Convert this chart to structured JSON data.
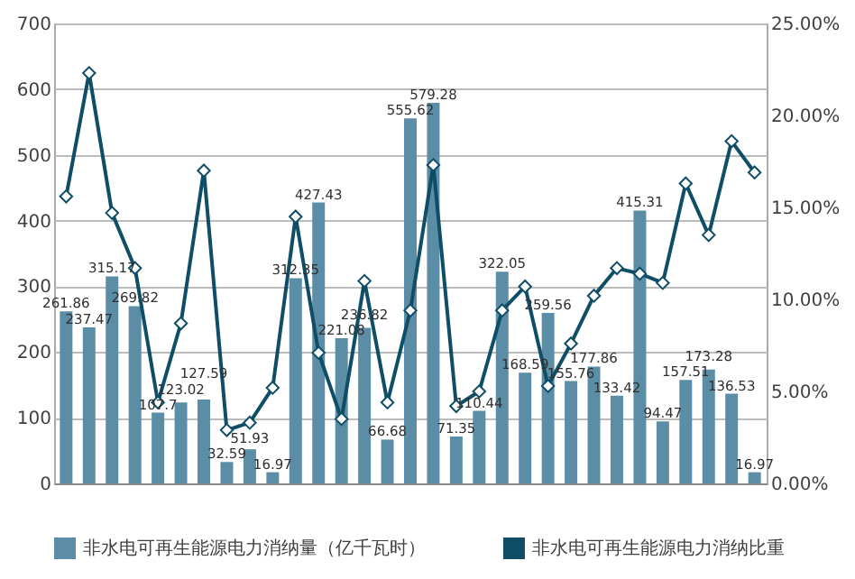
{
  "chart_data": {
    "type": "bar",
    "categories": [
      null,
      null,
      null,
      null,
      null,
      null,
      null,
      null,
      null,
      null,
      null,
      null,
      null,
      null,
      null,
      null,
      null,
      null,
      null,
      null,
      null,
      null,
      null,
      null,
      null,
      null,
      null,
      null,
      null,
      null,
      null
    ],
    "series": [
      {
        "name": "非水电可再生能源电力消纳量（亿千瓦时）",
        "color": "#5b8ea6",
        "values": [
          261.86,
          237.47,
          315.17,
          269.82,
          107.7,
          123.02,
          127.59,
          32.59,
          51.93,
          16.97,
          312.35,
          427.43,
          221.08,
          236.82,
          66.68,
          555.62,
          579.28,
          71.35,
          110.44,
          322.05,
          168.59,
          259.56,
          155.76,
          177.86,
          133.42,
          415.31,
          94.47,
          157.51,
          173.28,
          136.53,
          16.97
        ],
        "value_labels": [
          "261.86",
          "237.47",
          "315.17",
          "269.82",
          "107.7",
          "123.02",
          "127.59",
          "32.59",
          "51.93",
          "16.97",
          "312.35",
          "427.43",
          "221.08",
          "236.82",
          "66.68",
          "555.62",
          "579.28",
          "71.35",
          "110.44",
          "322.05",
          "168.59",
          "259.56",
          "155.76",
          "177.86",
          "133.42",
          "415.31",
          "94.47",
          "157.51",
          "173.28",
          "136.53",
          "16.97"
        ]
      },
      {
        "name": "非水电可再生能源电力消纳比重",
        "type": "line",
        "axis": "y2",
        "color": "#0f4e66",
        "marker": "diamond",
        "values": [
          15.6,
          22.3,
          14.7,
          11.7,
          4.4,
          8.7,
          17.0,
          2.9,
          3.3,
          5.2,
          14.5,
          7.1,
          3.5,
          11.0,
          4.4,
          9.4,
          17.3,
          4.2,
          5.0,
          9.4,
          10.7,
          5.3,
          7.6,
          10.2,
          11.7,
          11.4,
          10.9,
          16.3,
          13.5,
          18.6,
          16.9
        ]
      }
    ],
    "ylim": [
      0,
      700
    ],
    "yticks": [
      0,
      100,
      200,
      300,
      400,
      500,
      600,
      700
    ],
    "y2lim": [
      0,
      25
    ],
    "y2ticks": [
      {
        "value": 0,
        "label": "0.00%"
      },
      {
        "value": 5,
        "label": "5.00%"
      },
      {
        "value": 10,
        "label": "10.00%"
      },
      {
        "value": 15,
        "label": "15.00%"
      },
      {
        "value": 20,
        "label": "20.00%"
      },
      {
        "value": 25,
        "label": "25.00%"
      }
    ],
    "grid": "y",
    "legend": "bottom"
  }
}
